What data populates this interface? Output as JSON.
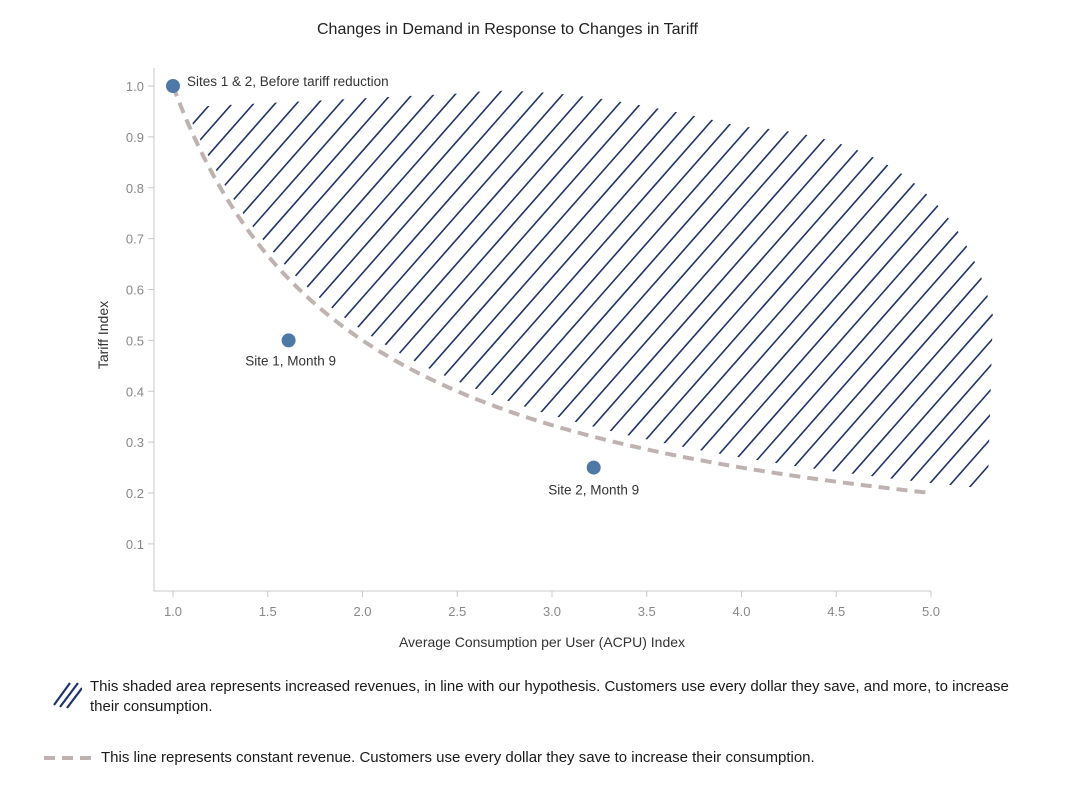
{
  "chart_data": {
    "type": "scatter",
    "title": "Changes in Demand in Response to Changes in Tariff",
    "xlabel": "Average Consumption per User (ACPU) Index",
    "ylabel": "Tariff Index",
    "xlim": [
      0.9,
      5.0
    ],
    "ylim": [
      0.0,
      1.05
    ],
    "x_ticks": [
      "1.0",
      "1.5",
      "2.0",
      "2.5",
      "3.0",
      "3.5",
      "4.0",
      "4.5",
      "5.0"
    ],
    "y_ticks": [
      "0.1",
      "0.2",
      "0.3",
      "0.4",
      "0.5",
      "0.6",
      "0.7",
      "0.8",
      "0.9",
      "1.0"
    ],
    "grid": false,
    "points": [
      {
        "x": 1.0,
        "y": 1.0,
        "label": "Sites 1 & 2, Before tariff reduction"
      },
      {
        "x": 1.61,
        "y": 0.5,
        "label": "Site 1, Month 9"
      },
      {
        "x": 3.22,
        "y": 0.25,
        "label": "Site 2, Month 9"
      }
    ],
    "constant_revenue_curve": {
      "formula": "y = 1 / x",
      "x_range": [
        1.0,
        5.0
      ]
    },
    "colors": {
      "points": "#4e79a7",
      "curve": "#bfb3b1",
      "hatch": "#1f3468",
      "axis": "#c8c8c8",
      "tick_text": "#888888"
    }
  },
  "legend": {
    "shaded_area_text": "This shaded area represents increased revenues, in line with our hypothesis. Customers use every dollar they save, and more, to increase their consumption.",
    "line_text": "This line represents constant revenue. Customers use every dollar they save to increase their consumption."
  }
}
